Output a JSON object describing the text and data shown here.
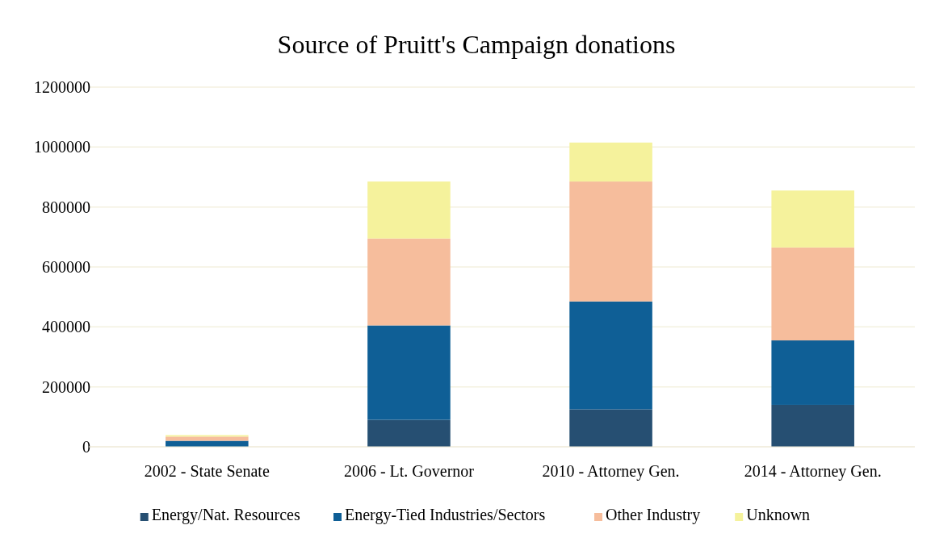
{
  "chart_data": {
    "type": "bar",
    "title": "Source of Pruitt's Campaign donations",
    "categories": [
      "2002 - State Senate",
      "2006 - Lt. Governor",
      "2010 - Attorney Gen.",
      "2014 - Attorney Gen."
    ],
    "stacked": true,
    "series": [
      {
        "name": "Energy/Nat. Resources",
        "color": "#264f72",
        "values": [
          null,
          90000,
          125000,
          140000
        ]
      },
      {
        "name": "Energy-Tied Industries/Sectors",
        "color": "#0f5f96",
        "values": [
          20000,
          315000,
          360000,
          215000
        ]
      },
      {
        "name": "Other Industry",
        "color": "#f6bd9c",
        "values": [
          14000,
          290000,
          400000,
          310000
        ]
      },
      {
        "name": "Unknown",
        "color": "#f5f29c",
        "values": [
          5000,
          190000,
          130000,
          190000
        ]
      }
    ],
    "ylim": [
      0,
      1200000
    ],
    "yticks": [
      0,
      200000,
      400000,
      600000,
      800000,
      1000000,
      1200000
    ],
    "grid": "y",
    "legend": "bottom"
  }
}
